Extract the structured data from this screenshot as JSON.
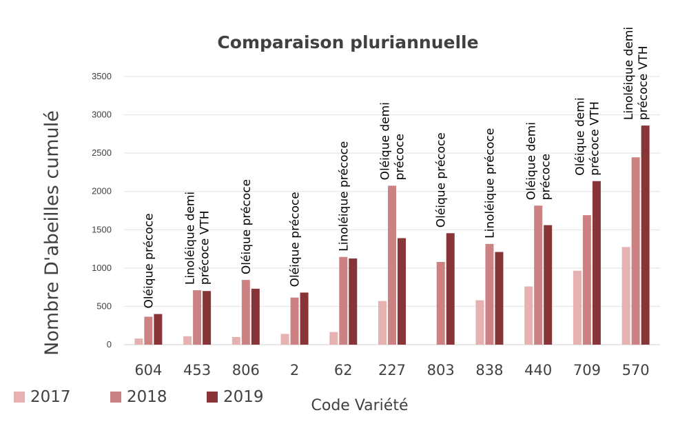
{
  "chart_data": {
    "type": "bar",
    "title": "Comparaison pluriannuelle",
    "xlabel": "Code Variété",
    "ylabel": "Nombre D'abeilles cumulé",
    "ylim": [
      0,
      3500
    ],
    "yticks": [
      0,
      500,
      1000,
      1500,
      2000,
      2500,
      3000,
      3500
    ],
    "grid": true,
    "legend_position": "bottom-left",
    "categories": [
      "604",
      "453",
      "806",
      "2",
      "62",
      "227",
      "803",
      "838",
      "440",
      "709",
      "570"
    ],
    "series": [
      {
        "name": "2017",
        "color": "#e6b1b1",
        "values": [
          80,
          110,
          100,
          140,
          165,
          570,
          0,
          580,
          760,
          965,
          1275
        ]
      },
      {
        "name": "2018",
        "color": "#cc8282",
        "values": [
          365,
          710,
          845,
          615,
          1145,
          2075,
          1080,
          1315,
          1815,
          1690,
          2445
        ]
      },
      {
        "name": "2019",
        "color": "#873537",
        "values": [
          400,
          700,
          730,
          680,
          1125,
          1390,
          1455,
          1210,
          1560,
          2135,
          2860
        ]
      }
    ],
    "annotations": [
      [
        "Oléique précoce"
      ],
      [
        "Linoléique demi",
        "précoce VTH"
      ],
      [
        "Oléique précoce"
      ],
      [
        "Oléique précoce"
      ],
      [
        "Linoléique précoce"
      ],
      [
        "Oléique demi",
        "précoce"
      ],
      [
        "Oléique précoce"
      ],
      [
        "Linoléique précoce"
      ],
      [
        "Oléique demi",
        "précoce"
      ],
      [
        "Oléique demi",
        "précoce VTH"
      ],
      [
        "Linoléique demi",
        "précoce  VTH"
      ]
    ]
  }
}
